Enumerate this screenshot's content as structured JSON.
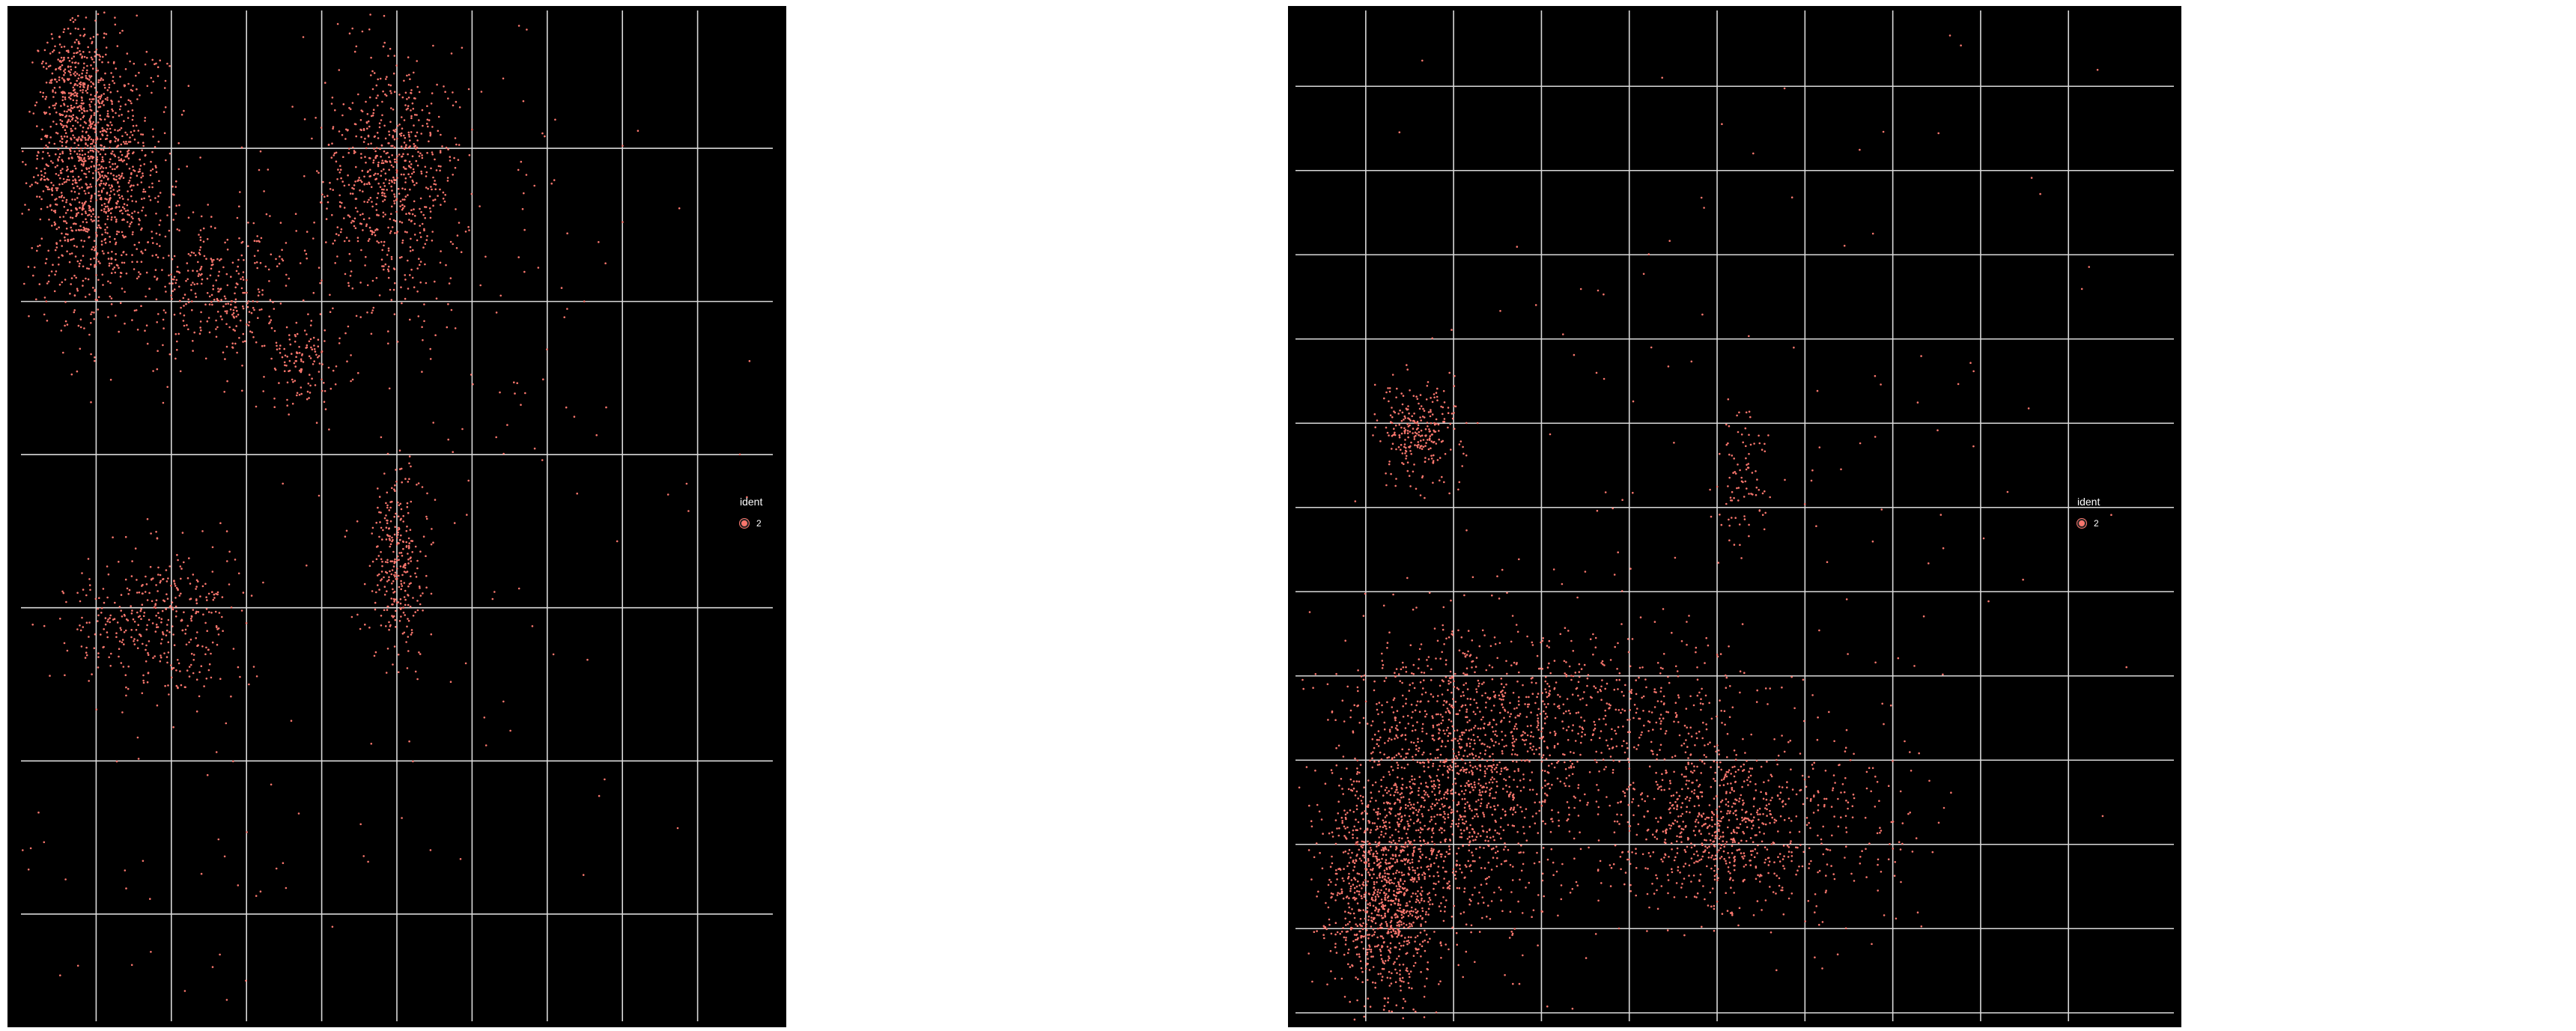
{
  "chart_data": [
    {
      "type": "scatter",
      "title": "",
      "xlabel": "",
      "ylabel": "",
      "grid": true,
      "legend_placement": "right",
      "legend": {
        "title": "ident",
        "entries": [
          {
            "label": "2",
            "color": "#f8766d"
          }
        ]
      },
      "xlim": [
        0,
        10
      ],
      "ylim": [
        0,
        6.6
      ],
      "x_gridlines": [
        1,
        2,
        3,
        4,
        5,
        6,
        7,
        8,
        9
      ],
      "y_gridlines": [
        0.7,
        1.7,
        2.7,
        3.7,
        4.7,
        5.7
      ],
      "clusters": [
        {
          "cx": 1.0,
          "cy": 5.5,
          "sx": 0.45,
          "sy": 0.45,
          "n": 1200
        },
        {
          "cx": 0.7,
          "cy": 6.1,
          "sx": 0.2,
          "sy": 0.2,
          "n": 250
        },
        {
          "cx": 2.6,
          "cy": 4.8,
          "sx": 0.6,
          "sy": 0.25,
          "n": 350
        },
        {
          "cx": 3.8,
          "cy": 4.3,
          "sx": 0.25,
          "sy": 0.15,
          "n": 120
        },
        {
          "cx": 4.9,
          "cy": 5.5,
          "sx": 0.45,
          "sy": 0.4,
          "n": 700
        },
        {
          "cx": 5.0,
          "cy": 3.0,
          "sx": 0.2,
          "sy": 0.3,
          "n": 300
        },
        {
          "cx": 1.8,
          "cy": 2.6,
          "sx": 0.55,
          "sy": 0.25,
          "n": 400
        },
        {
          "cx": 6.0,
          "cy": 4.5,
          "sx": 1.6,
          "sy": 1.3,
          "n": 140
        },
        {
          "cx": 2.5,
          "cy": 1.0,
          "sx": 2.2,
          "sy": 0.6,
          "n": 60
        }
      ]
    },
    {
      "type": "scatter",
      "title": "",
      "xlabel": "",
      "ylabel": "",
      "grid": true,
      "legend_placement": "right",
      "legend": {
        "title": "ident",
        "entries": [
          {
            "label": "2",
            "color": "#f8766d"
          }
        ]
      },
      "xlim": [
        0,
        10
      ],
      "ylim": [
        0,
        12
      ],
      "x_gridlines": [
        0.8,
        1.8,
        2.8,
        3.8,
        4.8,
        5.8,
        6.8,
        7.8,
        8.8
      ],
      "y_gridlines": [
        0.1,
        1.1,
        2.1,
        3.1,
        4.1,
        5.1,
        6.1,
        7.1,
        8.1,
        9.1,
        10.1,
        11.1
      ],
      "clusters": [
        {
          "cx": 1.0,
          "cy": 1.5,
          "sx": 0.3,
          "sy": 0.6,
          "n": 900
        },
        {
          "cx": 1.8,
          "cy": 2.8,
          "sx": 0.7,
          "sy": 0.9,
          "n": 1500
        },
        {
          "cx": 3.5,
          "cy": 3.6,
          "sx": 0.9,
          "sy": 0.5,
          "n": 500
        },
        {
          "cx": 4.7,
          "cy": 2.3,
          "sx": 0.5,
          "sy": 0.5,
          "n": 650
        },
        {
          "cx": 6.0,
          "cy": 2.4,
          "sx": 0.6,
          "sy": 0.6,
          "n": 220
        },
        {
          "cx": 1.4,
          "cy": 7.0,
          "sx": 0.25,
          "sy": 0.3,
          "n": 260
        },
        {
          "cx": 5.1,
          "cy": 6.5,
          "sx": 0.15,
          "sy": 0.4,
          "n": 90
        },
        {
          "cx": 5.0,
          "cy": 7.0,
          "sx": 2.5,
          "sy": 2.8,
          "n": 140
        }
      ]
    }
  ]
}
